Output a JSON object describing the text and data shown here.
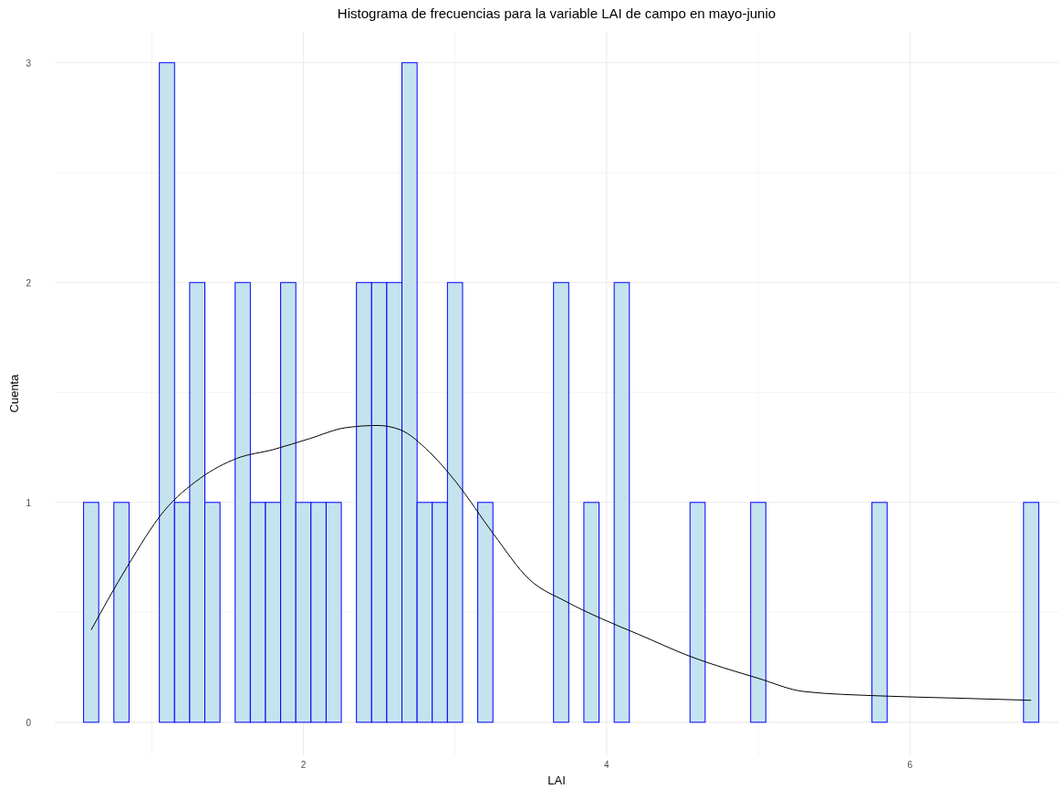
{
  "chart_data": {
    "type": "histogram",
    "title": "Histograma de frecuencias para la variable LAI de campo en mayo-junio",
    "xlabel": "LAI",
    "ylabel": "Cuenta",
    "bins": [
      0.55,
      0.65,
      0.75,
      0.85,
      0.95,
      1.05,
      1.15,
      1.25,
      1.35,
      1.45,
      1.55,
      1.65,
      1.75,
      1.85,
      1.95,
      2.05,
      2.15,
      2.25,
      2.35,
      2.45,
      2.55,
      2.65,
      2.75,
      2.85,
      2.95,
      3.05,
      3.15,
      3.25,
      3.35,
      3.45,
      3.55,
      3.65,
      3.75,
      3.85,
      3.95,
      4.05,
      4.15,
      4.25,
      4.35,
      4.45,
      4.55,
      4.65,
      4.75,
      4.85,
      4.95,
      5.05,
      5.15,
      5.25,
      5.35,
      5.45,
      5.55,
      5.65,
      5.75,
      5.85,
      5.95,
      6.05,
      6.15,
      6.25,
      6.35,
      6.45,
      6.55,
      6.65,
      6.75,
      6.85
    ],
    "series": [
      {
        "color": "#c5e3ef",
        "values": [
          1,
          0,
          1,
          0,
          0,
          3,
          1,
          2,
          1,
          0,
          2,
          1,
          1,
          2,
          1,
          1,
          1,
          0,
          2,
          2,
          2,
          3,
          1,
          1,
          2,
          0,
          1,
          0,
          0,
          0,
          0,
          2,
          0,
          1,
          0,
          2,
          0,
          0,
          0,
          0,
          1,
          0,
          0,
          0,
          1,
          0,
          0,
          0,
          0,
          0,
          0,
          0,
          1,
          0,
          0,
          0,
          0,
          0,
          0,
          0,
          0,
          0,
          1
        ]
      },
      {
        "type": "line",
        "color": "#000000",
        "x": [
          0.6,
          0.84,
          1.08,
          1.32,
          1.56,
          1.8,
          2.04,
          2.28,
          2.49,
          2.64,
          2.83,
          3.01,
          3.25,
          3.49,
          3.73,
          3.97,
          4.21,
          4.55,
          5.0,
          5.3,
          5.8,
          6.3,
          6.8
        ],
        "values": [
          0.42,
          0.71,
          0.96,
          1.11,
          1.2,
          1.24,
          1.29,
          1.34,
          1.35,
          1.33,
          1.23,
          1.09,
          0.86,
          0.65,
          0.55,
          0.47,
          0.4,
          0.3,
          0.2,
          0.14,
          0.12,
          0.11,
          0.1
        ]
      }
    ],
    "xlim": [
      0.36,
      6.98
    ],
    "ylim": [
      -0.15,
      3.14
    ],
    "xticks": [
      {
        "value": 1,
        "label": null
      },
      2,
      {
        "value": 3,
        "label": null
      },
      4,
      {
        "value": 5,
        "label": null
      },
      6
    ],
    "yticks": [
      0,
      {
        "value": 0.5,
        "label": null
      },
      1,
      {
        "value": 1.5,
        "label": null
      },
      2,
      {
        "value": 2.5,
        "label": null
      },
      3
    ],
    "grid": true
  }
}
